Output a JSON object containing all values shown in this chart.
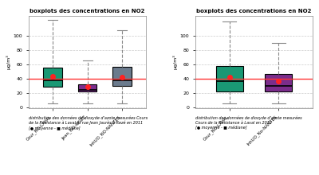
{
  "title": "boxplots des concentrations en NO2",
  "ylabel": "µg/m³",
  "hline_y": 40,
  "hline_color": "#FF3333",
  "background_color": "#ffffff",
  "plot1": {
    "labels": [
      "Cour_NO-LAVAL",
      "Jean_NO-REIZE",
      "InhUO_NO-NANTES"
    ],
    "colors": [
      "#1a9874",
      "#7b2d8b",
      "#6b7b8d"
    ],
    "boxes": [
      {
        "q1": 28,
        "median": 38,
        "q3": 55,
        "whislo": 5,
        "whishi": 122,
        "mean": 43
      },
      {
        "q1": 22,
        "median": 24,
        "q3": 32,
        "whislo": 5,
        "whishi": 65,
        "mean": 29
      },
      {
        "q1": 30,
        "median": 38,
        "q3": 56,
        "whislo": 5,
        "whishi": 108,
        "mean": 42
      }
    ],
    "ylim": [
      -2,
      128
    ],
    "yticks": [
      0,
      20,
      40,
      60,
      80,
      100
    ],
    "caption": "distribution des données de dioxyde d'azote mesurées Cours\nde la Résistance à Laval et rue Jean Jaurès à Rezé en 2011\n[● moyenne - ■ médiane]"
  },
  "plot2": {
    "labels": [
      "Cour_NO-LAVAL",
      "InhUO_No-NANTES"
    ],
    "colors": [
      "#1a9874",
      "#7b2d8b"
    ],
    "boxes": [
      {
        "q1": 22,
        "median": 36,
        "q3": 57,
        "whislo": 5,
        "whishi": 120,
        "mean": 42
      },
      {
        "q1": 22,
        "median": 30,
        "q3": 46,
        "whislo": 5,
        "whishi": 90,
        "mean": 36
      }
    ],
    "ylim": [
      -2,
      128
    ],
    "yticks": [
      0,
      20,
      40,
      60,
      80,
      100
    ],
    "caption": "distribution des données de dioxyde d'azote mesurées\nCours de la Résistance à Laval en 2012\n[● moyenne - ■ médiane]"
  },
  "grid_color": "#cccccc",
  "mean_color": "#FF2222",
  "mean_size": 4,
  "box_width": 0.55
}
